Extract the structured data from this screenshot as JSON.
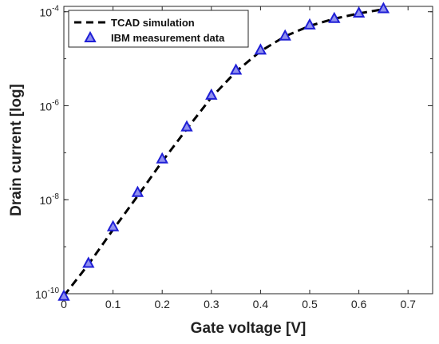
{
  "chart_data": {
    "type": "line",
    "xlabel": "Gate voltage [V]",
    "ylabel": "Drain current [log]",
    "xlim": [
      0,
      0.75
    ],
    "ylim": [
      1e-10,
      0.00013
    ],
    "yscale": "log",
    "grid": false,
    "legend_position": "top-left",
    "x_ticks": [
      {
        "value": 0,
        "label": "0"
      },
      {
        "value": 0.1,
        "label": "0.1"
      },
      {
        "value": 0.2,
        "label": "0.2"
      },
      {
        "value": 0.3,
        "label": "0.3"
      },
      {
        "value": 0.4,
        "label": "0.4"
      },
      {
        "value": 0.5,
        "label": "0.5"
      },
      {
        "value": 0.6,
        "label": "0.6"
      },
      {
        "value": 0.7,
        "label": "0.7"
      }
    ],
    "y_ticks": [
      {
        "value": 1e-10,
        "base": "10",
        "exp": "-10"
      },
      {
        "value": 1e-08,
        "base": "10",
        "exp": "-8"
      },
      {
        "value": 1e-06,
        "base": "10",
        "exp": "-6"
      },
      {
        "value": 0.0001,
        "base": "10",
        "exp": "-4"
      }
    ],
    "series": [
      {
        "name": "TCAD simulation",
        "style": "dashed-line",
        "color": "#000000",
        "x": [
          0,
          0.05,
          0.1,
          0.15,
          0.2,
          0.25,
          0.3,
          0.35,
          0.4,
          0.45,
          0.5,
          0.55,
          0.6,
          0.65
        ],
        "y": [
          9e-11,
          4.2e-10,
          2.3e-09,
          1.2e-08,
          6.5e-08,
          3.2e-07,
          1.5e-06,
          5.3e-06,
          1.45e-05,
          3e-05,
          5e-05,
          7.1e-05,
          9.2e-05,
          0.000113
        ]
      },
      {
        "name": "IBM measurement data",
        "style": "triangle-markers",
        "color": "#1f1fd6",
        "x": [
          0,
          0.05,
          0.1,
          0.15,
          0.2,
          0.25,
          0.3,
          0.35,
          0.4,
          0.45,
          0.5,
          0.55,
          0.6,
          0.65
        ],
        "y": [
          9e-11,
          4.5e-10,
          2.7e-09,
          1.45e-08,
          7.5e-08,
          3.6e-07,
          1.7e-06,
          5.8e-06,
          1.55e-05,
          3.1e-05,
          5.3e-05,
          7.3e-05,
          9.5e-05,
          0.000118
        ]
      }
    ]
  }
}
